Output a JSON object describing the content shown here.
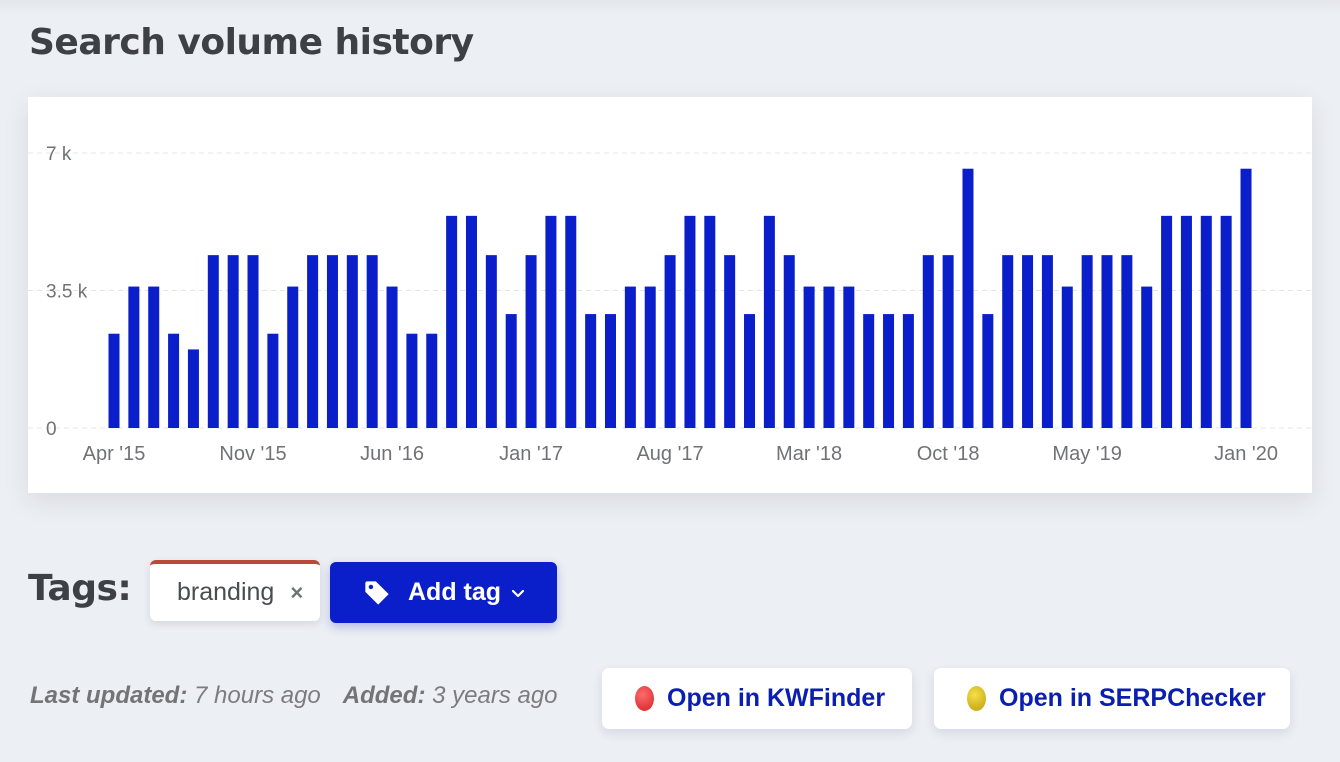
{
  "section": {
    "title": "Search volume history"
  },
  "chart_data": {
    "type": "bar",
    "title": "Search volume history",
    "xlabel": "",
    "ylabel": "",
    "ylim": [
      0,
      7000
    ],
    "yticks": [
      {
        "value": 0,
        "label": "0"
      },
      {
        "value": 3500,
        "label": "3.5 k"
      },
      {
        "value": 7000,
        "label": "7 k"
      }
    ],
    "grid": true,
    "legend": null,
    "bar_color": "#0a1fc9",
    "xtick_labels": [
      {
        "index": 0,
        "label": "Apr '15"
      },
      {
        "index": 7,
        "label": "Nov '15"
      },
      {
        "index": 14,
        "label": "Jun '16"
      },
      {
        "index": 21,
        "label": "Jan '17"
      },
      {
        "index": 28,
        "label": "Aug '17"
      },
      {
        "index": 35,
        "label": "Mar '18"
      },
      {
        "index": 42,
        "label": "Oct '18"
      },
      {
        "index": 49,
        "label": "May '19"
      },
      {
        "index": 57,
        "label": "Jan '20"
      }
    ],
    "categories": [
      "Apr '15",
      "May '15",
      "Jun '15",
      "Jul '15",
      "Aug '15",
      "Sep '15",
      "Oct '15",
      "Nov '15",
      "Dec '15",
      "Jan '16",
      "Feb '16",
      "Mar '16",
      "Apr '16",
      "May '16",
      "Jun '16",
      "Jul '16",
      "Aug '16",
      "Sep '16",
      "Oct '16",
      "Nov '16",
      "Dec '16",
      "Jan '17",
      "Feb '17",
      "Mar '17",
      "Apr '17",
      "May '17",
      "Jun '17",
      "Jul '17",
      "Aug '17",
      "Sep '17",
      "Oct '17",
      "Nov '17",
      "Dec '17",
      "Jan '18",
      "Feb '18",
      "Mar '18",
      "Apr '18",
      "May '18",
      "Jun '18",
      "Jul '18",
      "Aug '18",
      "Sep '18",
      "Oct '18",
      "Nov '18",
      "Dec '18",
      "Jan '19",
      "Feb '19",
      "Mar '19",
      "Apr '19",
      "May '19",
      "Jun '19",
      "Jul '19",
      "Aug '19",
      "Sep '19",
      "Oct '19",
      "Nov '19",
      "Dec '19",
      "Jan '20"
    ],
    "values": [
      2400,
      3600,
      3600,
      2400,
      2000,
      4400,
      4400,
      4400,
      2400,
      3600,
      4400,
      4400,
      4400,
      4400,
      3600,
      2400,
      2400,
      5400,
      5400,
      4400,
      2900,
      4400,
      5400,
      5400,
      2900,
      2900,
      3600,
      3600,
      4400,
      5400,
      5400,
      4400,
      2900,
      5400,
      4400,
      3600,
      3600,
      3600,
      2900,
      2900,
      2900,
      4400,
      4400,
      6600,
      2900,
      4400,
      4400,
      4400,
      3600,
      4400,
      4400,
      4400,
      3600,
      5400,
      5400,
      5400,
      5400,
      6600
    ]
  },
  "tags": {
    "label": "Tags:",
    "items": [
      {
        "text": "branding",
        "remove_glyph": "×",
        "accent": "#b94a3a"
      }
    ],
    "add_button": {
      "label": "Add tag",
      "icon": "tag-icon",
      "chevron": "chevron-down-icon"
    }
  },
  "meta": {
    "last_updated_label": "Last updated:",
    "last_updated_value": "7 hours ago",
    "added_label": "Added:",
    "added_value": "3 years ago"
  },
  "actions": {
    "kwfinder": {
      "label": "Open in KWFinder",
      "dot_color": "#e0363c"
    },
    "serpchecker": {
      "label": "Open in SERPChecker",
      "dot_color": "#d9bd22"
    }
  },
  "colors": {
    "accent": "#0a1fc9",
    "background": "#eceff3",
    "card": "#ffffff",
    "link_text": "#0a1fb0"
  }
}
